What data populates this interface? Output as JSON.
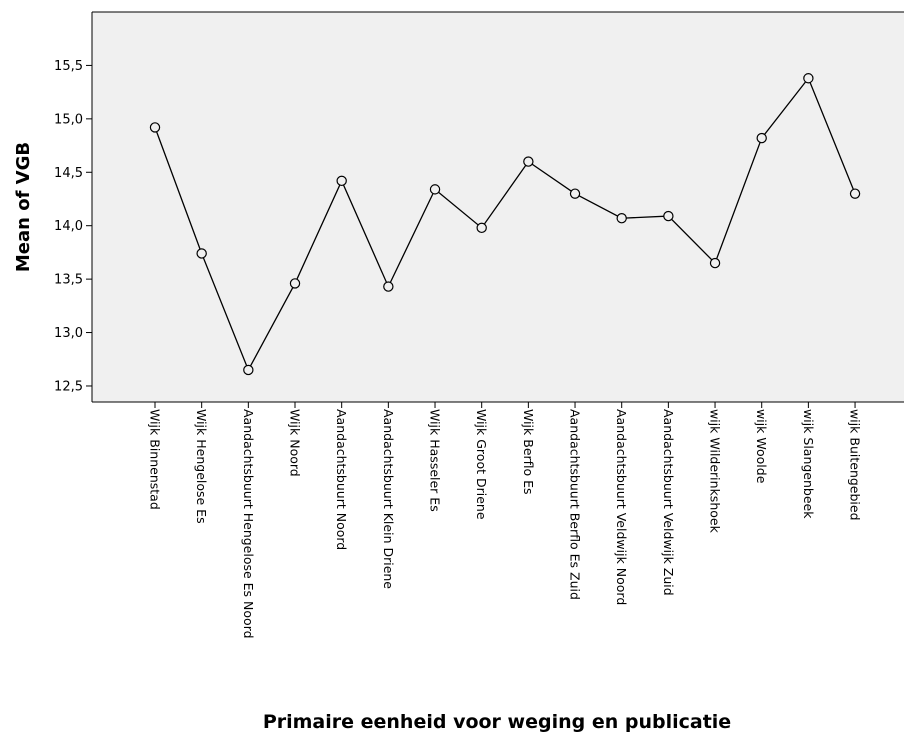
{
  "chart_data": {
    "type": "line",
    "xlabel": "Primaire eenheid voor weging en publicatie",
    "ylabel": "Mean of VGB",
    "ylim": [
      12.35,
      16.0
    ],
    "yticks": [
      12.5,
      13.0,
      13.5,
      14.0,
      14.5,
      15.0,
      15.5
    ],
    "ytick_labels": [
      "12,5",
      "13,0",
      "13,5",
      "14,0",
      "14,5",
      "15,0",
      "15,5"
    ],
    "grid": false,
    "marker": "open-circle",
    "plot_background": "#f0f0f0",
    "line_color": "#000000",
    "categories": [
      "Wijk Binnenstad",
      "Wijk Hengelose Es",
      "Aandachtsbuurt Hengelose Es Noord",
      "Wijk Noord",
      "Aandachtsbuurt Noord",
      "Aandachtsbuurt Klein Driene",
      "Wijk Hasseler Es",
      "Wijk Groot Driene",
      "Wijk Berflo Es",
      "Aandachtsbuurt Berflo Es Zuid",
      "Aandachtsbuurt Veldwijk Noord",
      "Aandachtsbuurt Veldwijk Zuid",
      "wijk Wilderinkshoek",
      "wijk Woolde",
      "wijk Slangenbeek",
      "wijk Buitengebied"
    ],
    "values": [
      14.92,
      13.74,
      12.65,
      13.46,
      14.42,
      13.43,
      14.34,
      13.98,
      14.6,
      14.3,
      14.07,
      14.09,
      13.65,
      14.82,
      15.38,
      14.3
    ]
  }
}
